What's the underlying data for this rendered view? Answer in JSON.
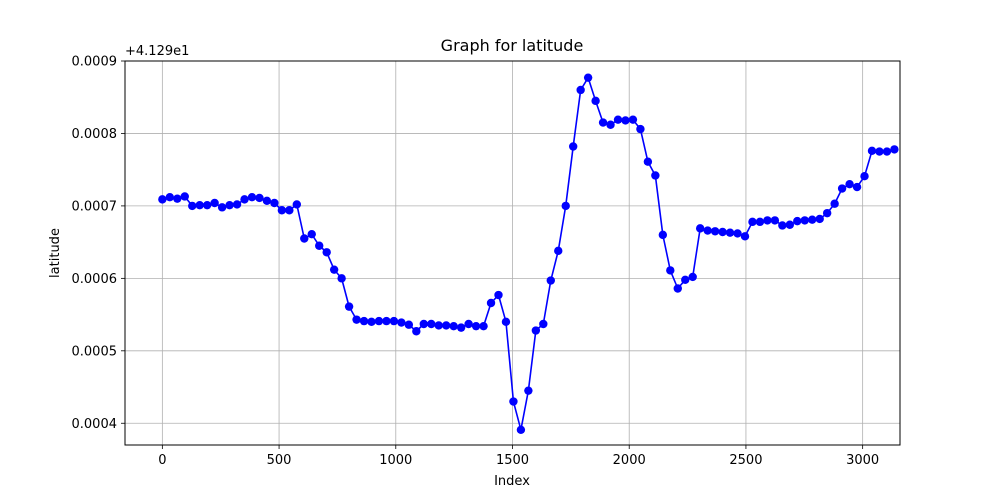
{
  "chart_data": {
    "type": "line",
    "title": "Graph for latitude",
    "xlabel": "Index",
    "ylabel": "latitude",
    "offset_label": "+4.129e1",
    "xlim": [
      -160,
      3160
    ],
    "ylim": [
      0.00037,
      0.0009
    ],
    "xticks": [
      0,
      500,
      1000,
      1500,
      2000,
      2500,
      3000
    ],
    "xtick_labels": [
      "0",
      "500",
      "1000",
      "1500",
      "2000",
      "2500",
      "3000"
    ],
    "yticks": [
      0.0004,
      0.0005,
      0.0006,
      0.0007,
      0.0008,
      0.0009
    ],
    "ytick_labels": [
      "0.0004",
      "0.0005",
      "0.0006",
      "0.0007",
      "0.0008",
      "0.0009"
    ],
    "grid": true,
    "series": [
      {
        "color": "#0000ff",
        "marker": "circle",
        "x": [
          0,
          32,
          64,
          96,
          128,
          160,
          192,
          224,
          256,
          288,
          320,
          352,
          384,
          416,
          448,
          480,
          512,
          544,
          576,
          608,
          640,
          672,
          704,
          736,
          768,
          800,
          832,
          864,
          896,
          928,
          960,
          992,
          1024,
          1056,
          1088,
          1120,
          1152,
          1184,
          1216,
          1248,
          1280,
          1312,
          1344,
          1376,
          1408,
          1440,
          1472,
          1504,
          1536,
          1568,
          1600,
          1632,
          1664,
          1696,
          1728,
          1760,
          1792,
          1824,
          1856,
          1888,
          1920,
          1952,
          1984,
          2016,
          2048,
          2080,
          2112,
          2144,
          2176,
          2208,
          2240,
          2272,
          2304,
          2336,
          2368,
          2400,
          2432,
          2464,
          2496,
          2528,
          2560,
          2592,
          2624,
          2656,
          2688,
          2720,
          2752,
          2784,
          2816,
          2848,
          2880,
          2912,
          2944,
          2976,
          3008,
          3040,
          3072,
          3104,
          3136
        ],
        "y": [
          0.000709,
          0.000712,
          0.00071,
          0.000713,
          0.0007,
          0.000701,
          0.000701,
          0.000704,
          0.000698,
          0.000701,
          0.000702,
          0.000709,
          0.000712,
          0.000711,
          0.000707,
          0.000704,
          0.000694,
          0.000694,
          0.000702,
          0.000655,
          0.000661,
          0.000645,
          0.000636,
          0.000612,
          0.0006,
          0.000561,
          0.000543,
          0.000541,
          0.00054,
          0.000541,
          0.000541,
          0.000541,
          0.000539,
          0.000536,
          0.000527,
          0.000537,
          0.000537,
          0.000535,
          0.000535,
          0.000534,
          0.000532,
          0.000537,
          0.000534,
          0.000534,
          0.000566,
          0.000577,
          0.00054,
          0.00043,
          0.000391,
          0.000445,
          0.000528,
          0.000537,
          0.000597,
          0.000638,
          0.0007,
          0.000782,
          0.00086,
          0.000877,
          0.000845,
          0.000815,
          0.000812,
          0.000819,
          0.000818,
          0.000819,
          0.000806,
          0.000761,
          0.000742,
          0.00066,
          0.000611,
          0.000586,
          0.000598,
          0.000602,
          0.000669,
          0.000666,
          0.000665,
          0.000664,
          0.000663,
          0.000662,
          0.000658,
          0.000678,
          0.000678,
          0.00068,
          0.00068,
          0.000673,
          0.000674,
          0.000679,
          0.00068,
          0.000681,
          0.000682,
          0.00069,
          0.000703,
          0.000724,
          0.00073,
          0.000726,
          0.000741,
          0.000776,
          0.000775,
          0.000775,
          0.000778
        ]
      }
    ]
  }
}
